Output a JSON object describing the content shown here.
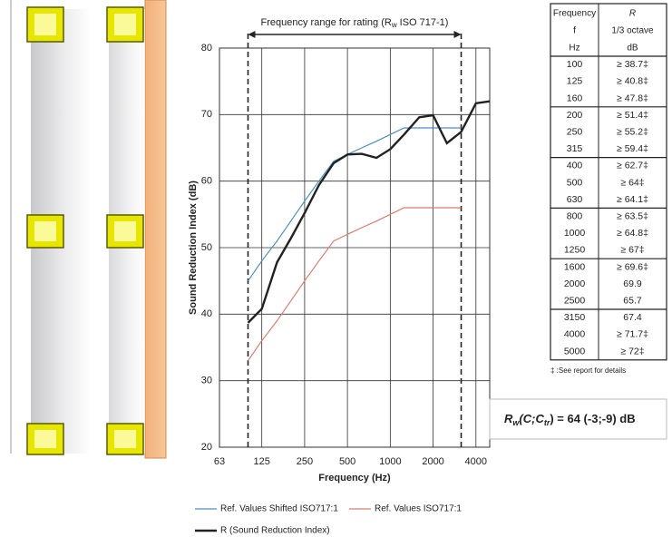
{
  "chart_data": {
    "type": "line",
    "range_label": [
      "Frequency range for rating (R",
      "w",
      " ISO 717-1)"
    ],
    "rating_range": [
      100,
      3150
    ],
    "xlabel": "Frequency (Hz)",
    "ylabel": "Sound Reduction Index (dB)",
    "x": [
      100,
      125,
      160,
      200,
      250,
      315,
      400,
      500,
      630,
      800,
      1000,
      1250,
      1600,
      2000,
      2500,
      3150,
      4000,
      5000
    ],
    "xlim": [
      63,
      5000
    ],
    "xticks": [
      63,
      125,
      250,
      500,
      1000,
      2000,
      4000
    ],
    "log_x": true,
    "ylim": [
      20,
      80
    ],
    "yticks": [
      20,
      30,
      40,
      50,
      60,
      70,
      80
    ],
    "grid": true,
    "series": [
      {
        "name": "Ref. Values Shifted ISO717:1",
        "color": "#4a90c2",
        "width": 1.2,
        "values": [
          45,
          48,
          51,
          54,
          57,
          60,
          63,
          64,
          65,
          66,
          67,
          68,
          68,
          68,
          68,
          68,
          null,
          null
        ]
      },
      {
        "name": "Ref. Values ISO717:1",
        "color": "#e07b6f",
        "width": 1.2,
        "values": [
          33,
          36,
          39,
          42,
          45,
          48,
          51,
          52,
          53,
          54,
          55,
          56,
          56,
          56,
          56,
          56,
          null,
          null
        ]
      },
      {
        "name": "R (Sound Reduction Index)",
        "color": "#222222",
        "width": 2.4,
        "values": [
          38.7,
          40.8,
          47.8,
          51.4,
          55.2,
          59.4,
          62.7,
          64,
          64.1,
          63.5,
          64.8,
          67,
          69.6,
          69.9,
          65.7,
          67.4,
          71.7,
          72
        ]
      }
    ],
    "result": [
      "R",
      "w",
      "(C;C",
      "tr",
      ") = 64 (-3;-9) dB"
    ]
  },
  "table": {
    "header": [
      [
        "Frequency",
        "f",
        "Hz"
      ],
      [
        "R",
        "1/3 octave",
        "dB"
      ]
    ],
    "rows": [
      [
        "100",
        "≥ 38.7‡"
      ],
      [
        "125",
        "≥ 40.8‡"
      ],
      [
        "160",
        "≥ 47.8‡"
      ],
      [
        "200",
        "≥ 51.4‡"
      ],
      [
        "250",
        "≥ 55.2‡"
      ],
      [
        "315",
        "≥ 59.4‡"
      ],
      [
        "400",
        "≥ 62.7‡"
      ],
      [
        "500",
        "≥ 64‡"
      ],
      [
        "630",
        "≥ 64.1‡"
      ],
      [
        "800",
        "≥ 63.5‡"
      ],
      [
        "1000",
        "≥ 64.8‡"
      ],
      [
        "1250",
        "≥ 67‡"
      ],
      [
        "1600",
        "≥ 69.6‡"
      ],
      [
        "2000",
        "69.9"
      ],
      [
        "2500",
        "65.7"
      ],
      [
        "3150",
        "67.4"
      ],
      [
        "4000",
        "≥ 71.7‡"
      ],
      [
        "5000",
        "≥ 72‡"
      ]
    ],
    "footnote": "‡ :See report for details"
  }
}
